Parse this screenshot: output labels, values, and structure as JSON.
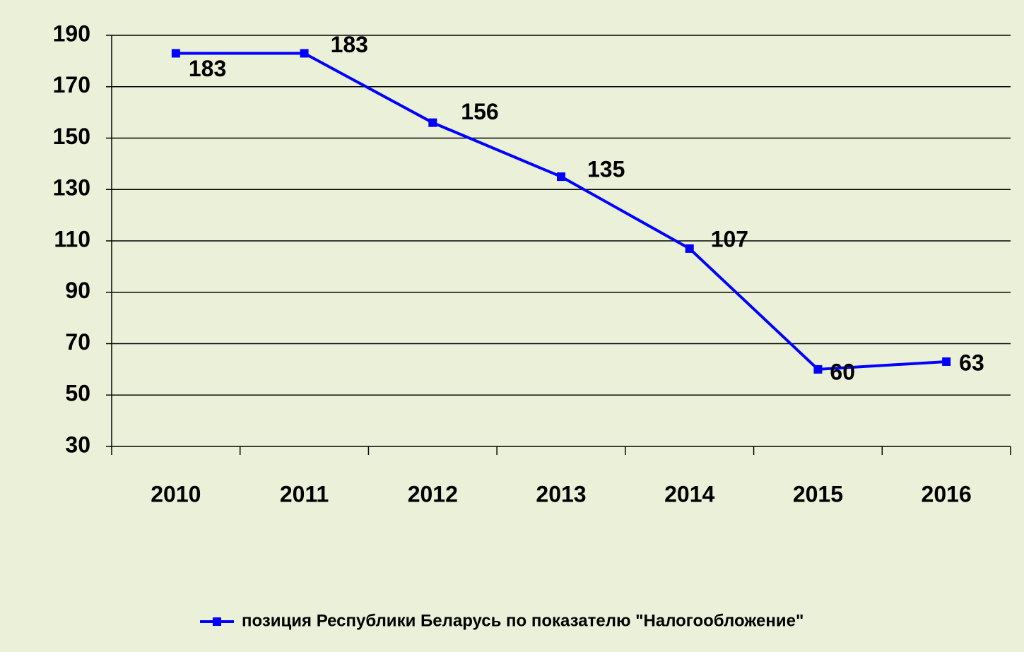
{
  "chart_data": {
    "type": "line",
    "categories": [
      "2010",
      "2011",
      "2012",
      "2013",
      "2014",
      "2015",
      "2016"
    ],
    "series": [
      {
        "name": "позиция Республики Беларусь по показателю \"Налогообложение\"",
        "color": "#0000ff",
        "values": [
          183,
          183,
          156,
          135,
          107,
          60,
          63
        ]
      }
    ],
    "ylim": [
      30,
      190
    ],
    "yticks": [
      30,
      50,
      70,
      90,
      110,
      130,
      150,
      170,
      190
    ],
    "grid": true,
    "legend": "bottom"
  }
}
